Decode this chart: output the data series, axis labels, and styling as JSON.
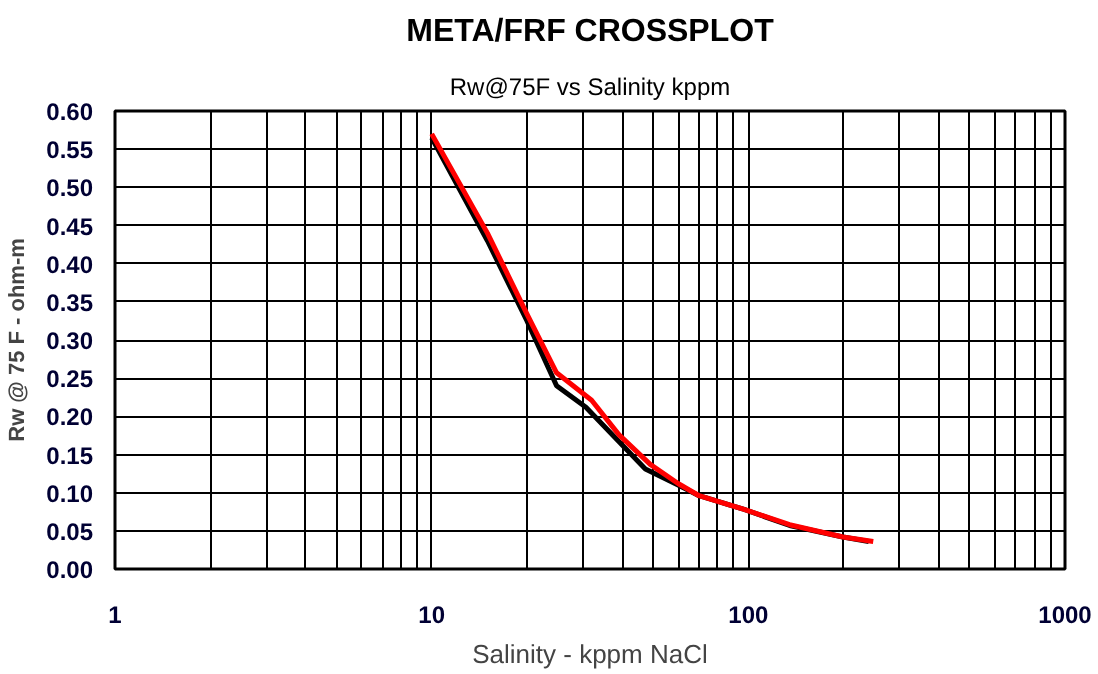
{
  "chart_data": {
    "type": "line",
    "title": "META/FRF CROSSPLOT",
    "subtitle": "Rw@75F vs Salinity kppm",
    "xlabel": "Salinity - kppm NaCl",
    "ylabel": "Rw @ 75 F - ohm-m",
    "log": "x",
    "xlim": [
      1,
      1000
    ],
    "ylim": [
      0,
      0.6
    ],
    "xticks": [
      1,
      {
        "value": 2,
        "label": null
      },
      {
        "value": 3,
        "label": null
      },
      {
        "value": 4,
        "label": null
      },
      {
        "value": 5,
        "label": null
      },
      {
        "value": 6,
        "label": null
      },
      {
        "value": 7,
        "label": null
      },
      {
        "value": 8,
        "label": null
      },
      {
        "value": 9,
        "label": null
      },
      10,
      {
        "value": 20,
        "label": null
      },
      {
        "value": 30,
        "label": null
      },
      {
        "value": 40,
        "label": null
      },
      {
        "value": 50,
        "label": null
      },
      {
        "value": 60,
        "label": null
      },
      {
        "value": 70,
        "label": null
      },
      {
        "value": 80,
        "label": null
      },
      {
        "value": 90,
        "label": null
      },
      100,
      {
        "value": 200,
        "label": null
      },
      {
        "value": 300,
        "label": null
      },
      {
        "value": 400,
        "label": null
      },
      {
        "value": 500,
        "label": null
      },
      {
        "value": 600,
        "label": null
      },
      {
        "value": 700,
        "label": null
      },
      {
        "value": 800,
        "label": null
      },
      {
        "value": 900,
        "label": null
      },
      1000
    ],
    "yticks": [
      {
        "value": 0,
        "label": "0.00"
      },
      0.05,
      {
        "value": 0.1,
        "label": "0.10"
      },
      0.15,
      {
        "value": 0.2,
        "label": "0.20"
      },
      0.25,
      {
        "value": 0.3,
        "label": "0.30"
      },
      0.35,
      {
        "value": 0.4,
        "label": "0.40"
      },
      0.45,
      {
        "value": 0.5,
        "label": "0.50"
      },
      0.55,
      {
        "value": 0.6,
        "label": "0.60"
      }
    ],
    "grid": true,
    "marker": "none",
    "line_style": "solid",
    "series": [
      {
        "color": "#000000",
        "x": [
          10,
          15,
          20,
          24.8,
          30.7,
          39,
          47.3,
          60,
          69.9,
          97,
          135,
          199,
          240
        ],
        "values": [
          0.565,
          0.43,
          0.325,
          0.24,
          0.212,
          0.167,
          0.131,
          0.11,
          0.096,
          0.078,
          0.057,
          0.042,
          0.036
        ]
      },
      {
        "color": "#ff0000",
        "x": [
          10,
          15,
          20,
          24.8,
          32,
          39,
          49,
          60,
          69.9,
          97,
          135,
          199,
          248
        ],
        "values": [
          0.57,
          0.44,
          0.334,
          0.257,
          0.221,
          0.176,
          0.137,
          0.112,
          0.096,
          0.078,
          0.058,
          0.042,
          0.036
        ]
      }
    ]
  }
}
